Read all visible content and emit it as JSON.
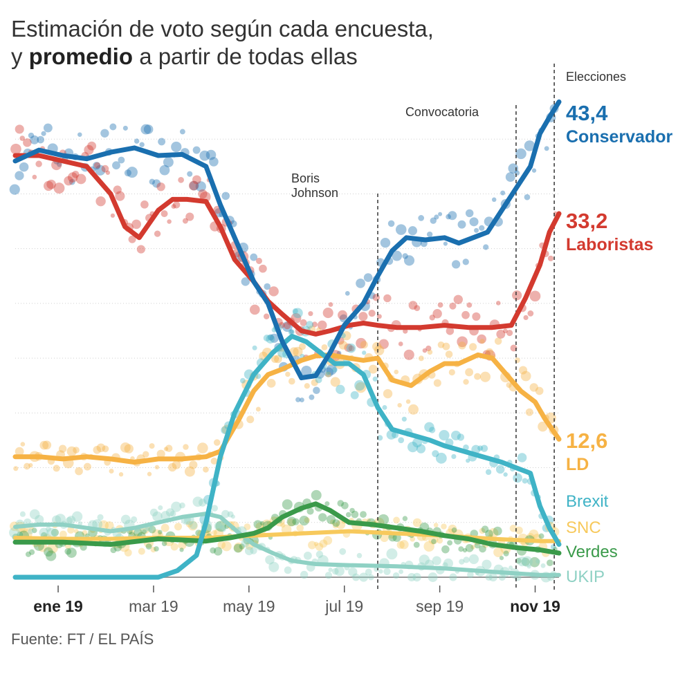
{
  "title": {
    "line1": "Estimación de voto según cada encuesta,",
    "line2_pre": "y",
    "line2_bold": "promedio",
    "line2_post": "a partir de todas ellas"
  },
  "source": "Fuente: FT / EL PAÍS",
  "events": {
    "boris": {
      "line1": "Boris",
      "line2": "Johnson"
    },
    "convocatoria": "Convocatoria",
    "elecciones": "Elecciones"
  },
  "chart_data": {
    "type": "line",
    "title": "Estimación de voto según cada encuesta, y promedio a partir de todas ellas",
    "xlabel": "",
    "ylabel": "",
    "ylim": [
      0,
      45
    ],
    "x_range_months": [
      0,
      11.4
    ],
    "x_ticks": [
      {
        "month": 0.9,
        "label": "ene 19",
        "bold": true
      },
      {
        "month": 2.9,
        "label": "mar 19",
        "bold": false
      },
      {
        "month": 4.9,
        "label": "may 19",
        "bold": false
      },
      {
        "month": 6.9,
        "label": "jul 19",
        "bold": false
      },
      {
        "month": 8.9,
        "label": "sep 19",
        "bold": false
      },
      {
        "month": 10.9,
        "label": "nov 19",
        "bold": true
      }
    ],
    "event_lines": [
      {
        "month": 7.6,
        "name": "boris"
      },
      {
        "month": 10.5,
        "name": "convocatoria"
      },
      {
        "month": 11.3,
        "name": "elecciones"
      }
    ],
    "series": [
      {
        "name": "Conservador",
        "color": "#1a6faf",
        "width": 7,
        "final_value": "43,4",
        "points": [
          [
            0,
            38
          ],
          [
            0.5,
            39
          ],
          [
            1,
            38.5
          ],
          [
            1.5,
            38.2
          ],
          [
            2,
            38.8
          ],
          [
            2.5,
            39.2
          ],
          [
            3,
            38.5
          ],
          [
            3.5,
            38.6
          ],
          [
            4,
            37.5
          ],
          [
            4.3,
            34
          ],
          [
            4.7,
            30
          ],
          [
            5,
            27
          ],
          [
            5.3,
            25
          ],
          [
            5.6,
            21.5
          ],
          [
            6,
            18.2
          ],
          [
            6.3,
            18.4
          ],
          [
            6.6,
            20.5
          ],
          [
            6.9,
            23
          ],
          [
            7.3,
            25
          ],
          [
            7.6,
            27.5
          ],
          [
            7.9,
            29.8
          ],
          [
            8.2,
            31
          ],
          [
            8.6,
            30.8
          ],
          [
            9,
            31
          ],
          [
            9.3,
            30.5
          ],
          [
            9.6,
            31
          ],
          [
            9.9,
            31.5
          ],
          [
            10.2,
            33.5
          ],
          [
            10.5,
            35.5
          ],
          [
            10.8,
            37.5
          ],
          [
            11,
            40.5
          ],
          [
            11.2,
            42
          ],
          [
            11.4,
            43.4
          ]
        ]
      },
      {
        "name": "Laboristas",
        "color": "#d33a2f",
        "width": 7,
        "final_value": "33,2",
        "points": [
          [
            0,
            38.5
          ],
          [
            0.5,
            38.5
          ],
          [
            1,
            38
          ],
          [
            1.5,
            37.5
          ],
          [
            2,
            35
          ],
          [
            2.3,
            32
          ],
          [
            2.6,
            31
          ],
          [
            3,
            33.5
          ],
          [
            3.3,
            34.5
          ],
          [
            3.6,
            34.5
          ],
          [
            4,
            34.3
          ],
          [
            4.3,
            32
          ],
          [
            4.6,
            29
          ],
          [
            5,
            27
          ],
          [
            5.3,
            25.2
          ],
          [
            5.6,
            24
          ],
          [
            6,
            22.5
          ],
          [
            6.3,
            22.2
          ],
          [
            6.6,
            22.5
          ],
          [
            7,
            23
          ],
          [
            7.3,
            23.2
          ],
          [
            7.6,
            23
          ],
          [
            8,
            22.8
          ],
          [
            8.5,
            22.8
          ],
          [
            9,
            23
          ],
          [
            9.5,
            22.8
          ],
          [
            10,
            22.8
          ],
          [
            10.4,
            23
          ],
          [
            10.7,
            25.5
          ],
          [
            11,
            28.5
          ],
          [
            11.2,
            31.5
          ],
          [
            11.4,
            33.2
          ]
        ]
      },
      {
        "name": "LD",
        "color": "#f6b244",
        "width": 7,
        "final_value": "12,6",
        "points": [
          [
            0,
            11
          ],
          [
            0.5,
            11
          ],
          [
            1,
            10.8
          ],
          [
            1.5,
            11
          ],
          [
            2,
            10.8
          ],
          [
            2.5,
            10.5
          ],
          [
            3,
            10.8
          ],
          [
            3.5,
            10.8
          ],
          [
            4,
            11
          ],
          [
            4.3,
            11.5
          ],
          [
            4.7,
            14.5
          ],
          [
            5,
            17
          ],
          [
            5.3,
            18.5
          ],
          [
            5.6,
            19
          ],
          [
            6,
            19.8
          ],
          [
            6.3,
            20.2
          ],
          [
            6.6,
            20.3
          ],
          [
            7,
            20
          ],
          [
            7.3,
            19.8
          ],
          [
            7.6,
            20
          ],
          [
            7.9,
            18
          ],
          [
            8.3,
            17.5
          ],
          [
            8.7,
            18.8
          ],
          [
            9,
            19.5
          ],
          [
            9.3,
            19.5
          ],
          [
            9.7,
            20.3
          ],
          [
            10,
            20
          ],
          [
            10.3,
            18.5
          ],
          [
            10.6,
            17
          ],
          [
            10.9,
            16
          ],
          [
            11.1,
            14.5
          ],
          [
            11.4,
            12.6
          ]
        ]
      },
      {
        "name": "Brexit",
        "color": "#3fb3c6",
        "width": 7,
        "final_value": "",
        "points": [
          [
            0,
            0
          ],
          [
            3,
            0
          ],
          [
            3.4,
            0.6
          ],
          [
            3.8,
            2
          ],
          [
            4,
            5
          ],
          [
            4.3,
            11
          ],
          [
            4.6,
            15
          ],
          [
            5,
            18.5
          ],
          [
            5.4,
            20.5
          ],
          [
            5.8,
            22
          ],
          [
            6.1,
            21.5
          ],
          [
            6.4,
            20.5
          ],
          [
            6.7,
            19.5
          ],
          [
            7,
            19.5
          ],
          [
            7.3,
            18.5
          ],
          [
            7.6,
            15.5
          ],
          [
            7.9,
            13.5
          ],
          [
            8.3,
            13
          ],
          [
            8.7,
            12.5
          ],
          [
            9,
            12
          ],
          [
            9.4,
            11.5
          ],
          [
            9.8,
            11
          ],
          [
            10.2,
            10.5
          ],
          [
            10.5,
            10
          ],
          [
            10.8,
            9.5
          ],
          [
            11,
            6.5
          ],
          [
            11.2,
            4.5
          ],
          [
            11.4,
            3
          ]
        ]
      },
      {
        "name": "SNC",
        "color": "#f7c95c",
        "width": 6,
        "final_value": "",
        "points": [
          [
            0,
            3.6
          ],
          [
            1,
            3.5
          ],
          [
            2,
            3.5
          ],
          [
            3,
            3.6
          ],
          [
            4,
            3.6
          ],
          [
            5,
            3.8
          ],
          [
            6,
            4
          ],
          [
            7,
            4.2
          ],
          [
            8,
            4
          ],
          [
            9,
            3.8
          ],
          [
            10,
            3.5
          ],
          [
            10.5,
            3.4
          ],
          [
            11,
            3.3
          ],
          [
            11.4,
            3.3
          ]
        ]
      },
      {
        "name": "Verdes",
        "color": "#3a9a4a",
        "width": 7,
        "final_value": "",
        "points": [
          [
            0,
            3.2
          ],
          [
            1,
            3.2
          ],
          [
            2,
            3
          ],
          [
            3,
            3.5
          ],
          [
            4,
            3.3
          ],
          [
            4.5,
            3.6
          ],
          [
            5,
            4
          ],
          [
            5.3,
            4.5
          ],
          [
            5.6,
            5.5
          ],
          [
            6,
            6.3
          ],
          [
            6.3,
            6.7
          ],
          [
            6.6,
            6.1
          ],
          [
            7,
            5
          ],
          [
            7.5,
            4.8
          ],
          [
            8,
            4.5
          ],
          [
            8.5,
            4.2
          ],
          [
            9,
            3.8
          ],
          [
            9.5,
            3.5
          ],
          [
            10,
            3
          ],
          [
            10.5,
            2.7
          ],
          [
            11,
            2.5
          ],
          [
            11.4,
            2.2
          ]
        ]
      },
      {
        "name": "UKIP",
        "color": "#8fd1c4",
        "width": 6,
        "final_value": "",
        "points": [
          [
            0,
            4.6
          ],
          [
            0.5,
            4.8
          ],
          [
            1,
            4.8
          ],
          [
            1.5,
            4.5
          ],
          [
            2,
            4.2
          ],
          [
            2.5,
            4.5
          ],
          [
            3,
            5
          ],
          [
            3.5,
            5.5
          ],
          [
            4,
            5.8
          ],
          [
            4.3,
            5.5
          ],
          [
            4.7,
            4
          ],
          [
            5,
            3
          ],
          [
            5.4,
            2.2
          ],
          [
            5.8,
            1.5
          ],
          [
            6.3,
            1.2
          ],
          [
            7,
            1.1
          ],
          [
            8,
            1
          ],
          [
            9,
            0.8
          ],
          [
            10,
            0.5
          ],
          [
            11,
            0.2
          ],
          [
            11.4,
            0.2
          ]
        ]
      }
    ],
    "end_labels": [
      {
        "value": "43,4",
        "name": "Conservador",
        "color": "#1a6faf"
      },
      {
        "value": "33,2",
        "name": "Laboristas",
        "color": "#d33a2f"
      },
      {
        "value": "12,6",
        "name": "LD",
        "color": "#f6b244"
      },
      {
        "value": "",
        "name": "Brexit",
        "color": "#3fb3c6"
      },
      {
        "value": "",
        "name": "SNC",
        "color": "#f7c95c"
      },
      {
        "value": "",
        "name": "Verdes",
        "color": "#3a9a4a"
      },
      {
        "value": "",
        "name": "UKIP",
        "color": "#8fd1c4"
      }
    ]
  }
}
